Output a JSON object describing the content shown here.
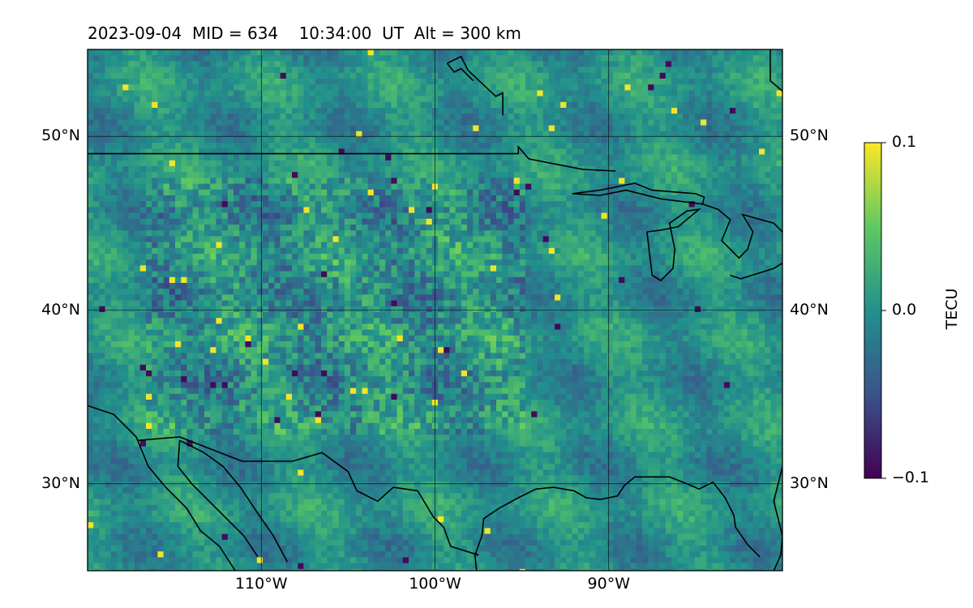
{
  "title": "2023-09-04  MID = 634    10:34:00  UT  Alt = 300 km",
  "map": {
    "extent": {
      "lon": [
        -120,
        -80
      ],
      "lat": [
        25,
        55
      ]
    },
    "gridlines": true,
    "lat_ticks": [
      {
        "lat": 30,
        "label": "30°N"
      },
      {
        "lat": 40,
        "label": "40°N"
      },
      {
        "lat": 50,
        "label": "50°N"
      }
    ],
    "lon_ticks": [
      {
        "lon": -110,
        "label": "110°W"
      },
      {
        "lon": -100,
        "label": "100°W"
      },
      {
        "lon": -90,
        "label": "90°W"
      }
    ],
    "field": "detrended total electron content (TEC) perturbation",
    "colormap": "viridis",
    "coastline_color": "#000000"
  },
  "colorbar": {
    "label": "TECU",
    "range": [
      -0.1,
      0.1
    ],
    "ticks": [
      {
        "value": 0.1,
        "label": "0.1"
      },
      {
        "value": 0.0,
        "label": "0.0"
      },
      {
        "value": -0.1,
        "label": "−0.1"
      }
    ],
    "colors": [
      "#440154",
      "#3b528b",
      "#21918c",
      "#5ec962",
      "#fde725"
    ]
  }
}
